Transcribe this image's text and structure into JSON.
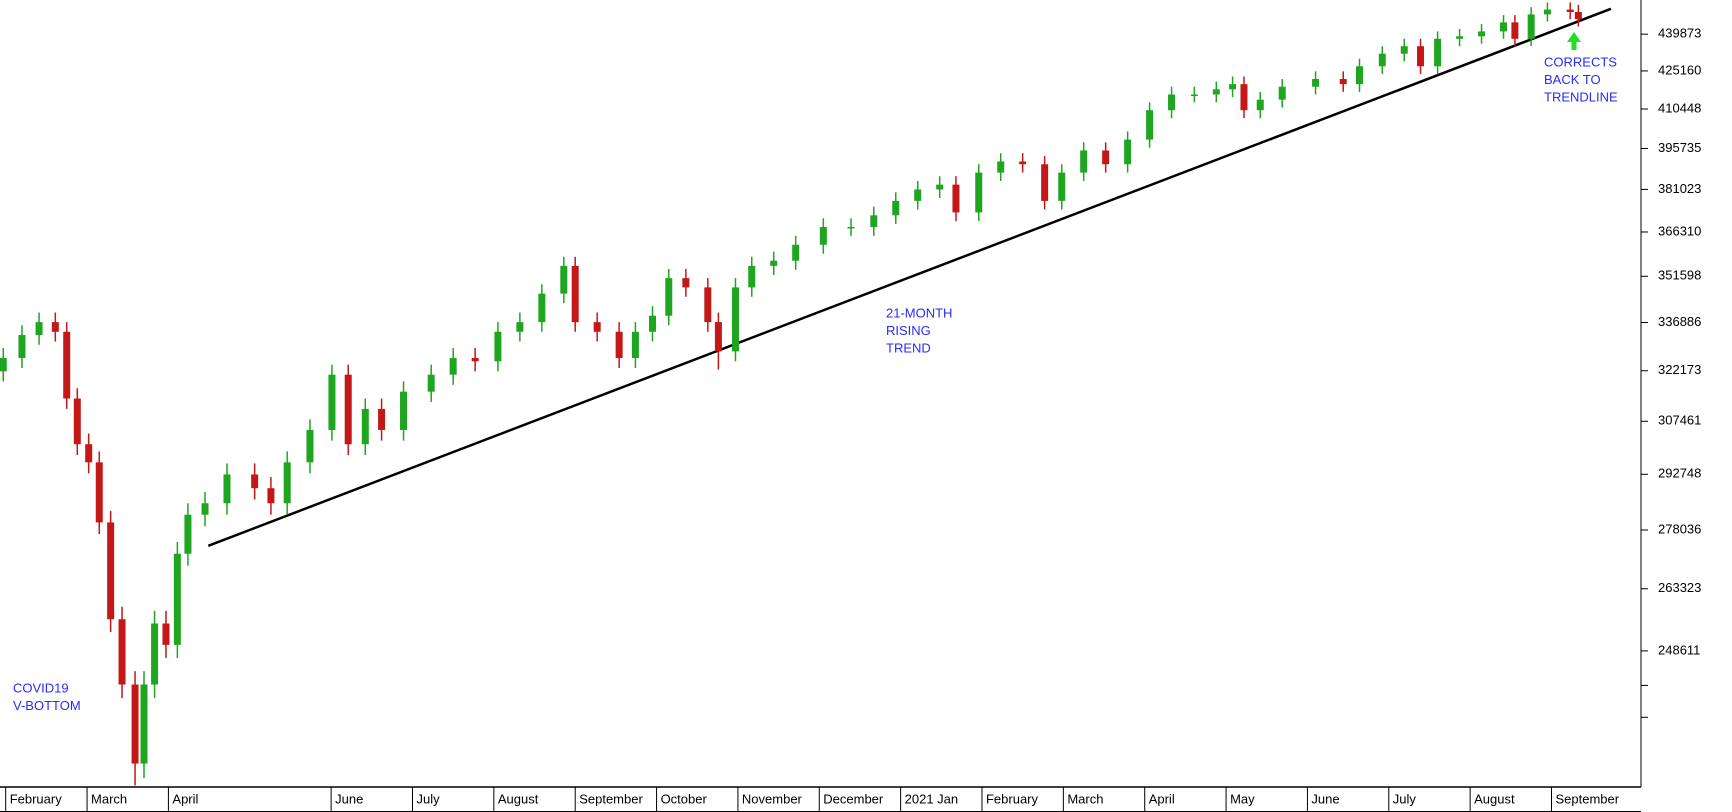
{
  "chart_data": {
    "type": "candlestick",
    "x": [
      -0.03,
      0.2,
      0.41,
      0.61,
      0.75,
      0.88,
      1.02,
      1.15,
      1.29,
      1.43,
      1.59,
      1.7,
      1.83,
      1.97,
      2.11,
      2.24,
      2.45,
      2.72,
      3.06,
      3.26,
      3.46,
      3.74,
      4.01,
      4.21,
      4.42,
      4.62,
      4.89,
      5.23,
      5.5,
      5.77,
      6.05,
      6.32,
      6.59,
      6.86,
      7.0,
      7.27,
      7.54,
      7.74,
      7.95,
      8.15,
      8.36,
      8.63,
      8.76,
      8.97,
      9.17,
      9.44,
      9.71,
      10.05,
      10.39,
      10.67,
      10.94,
      11.21,
      11.48,
      11.68,
      11.96,
      12.23,
      12.5,
      12.77,
      12.98,
      13.25,
      13.52,
      13.79,
      14.06,
      14.33,
      14.61,
      14.88,
      15.08,
      15.22,
      15.42,
      15.69,
      16.1,
      16.44,
      16.64,
      16.92,
      17.19,
      17.39,
      17.6,
      17.87,
      18.14,
      18.41,
      18.55,
      18.75,
      18.95,
      19.23,
      19.33
    ],
    "open": [
      322000,
      326000,
      333000,
      337000,
      334000,
      314000,
      301000,
      296000,
      280000,
      256000,
      241000,
      224000,
      241000,
      255000,
      250000,
      272000,
      282000,
      285000,
      292700,
      289000,
      285000,
      296000,
      305000,
      321000,
      301000,
      311000,
      305000,
      316000,
      321000,
      326000,
      325000,
      334000,
      337000,
      346000,
      355000,
      337000,
      334000,
      326000,
      334000,
      339000,
      351000,
      348000,
      337000,
      328000,
      348000,
      355000,
      356700,
      362000,
      368000,
      368000,
      372000,
      377000,
      381000,
      382700,
      373000,
      387000,
      391000,
      390000,
      377000,
      387000,
      395000,
      390000,
      399000,
      410000,
      416000,
      416000,
      418000,
      420000,
      410000,
      414000,
      419000,
      422000,
      420000,
      427000,
      432000,
      435000,
      427000,
      438000,
      439000,
      441000,
      444700,
      438000,
      448000,
      450000,
      449000
    ],
    "high": [
      329000,
      336000,
      340000,
      340000,
      337000,
      317000,
      304000,
      299000,
      283000,
      259000,
      244000,
      244000,
      258000,
      258000,
      275000,
      285000,
      288000,
      295700,
      295700,
      292000,
      299000,
      308000,
      324000,
      324000,
      314000,
      314000,
      319000,
      324000,
      329000,
      329000,
      337000,
      340000,
      349000,
      358000,
      358000,
      340000,
      337000,
      337000,
      342000,
      354000,
      354000,
      351000,
      340000,
      351000,
      358000,
      359700,
      365000,
      371000,
      371000,
      375000,
      380000,
      384000,
      385700,
      385700,
      390000,
      394000,
      394000,
      393000,
      390000,
      398000,
      398000,
      402000,
      413000,
      419000,
      419000,
      421000,
      423000,
      423000,
      417000,
      422000,
      425000,
      425000,
      430000,
      435000,
      438000,
      438000,
      441000,
      442000,
      444000,
      447700,
      447700,
      451000,
      453000,
      453000,
      452000
    ],
    "low": [
      319000,
      323000,
      330000,
      331000,
      311000,
      298000,
      293000,
      277000,
      253000,
      238000,
      219500,
      221000,
      238000,
      247000,
      247000,
      269000,
      279000,
      282000,
      286000,
      282000,
      282000,
      293000,
      302000,
      298000,
      298000,
      302000,
      302000,
      313000,
      318000,
      322000,
      322000,
      331000,
      334000,
      343000,
      334000,
      331000,
      323000,
      323000,
      331000,
      336000,
      345000,
      334000,
      322500,
      325000,
      345000,
      352000,
      353700,
      359000,
      365000,
      365000,
      369000,
      374000,
      378000,
      370000,
      370000,
      384000,
      387000,
      374000,
      374000,
      384000,
      387000,
      387000,
      396000,
      407000,
      413000,
      413000,
      415000,
      407000,
      407000,
      411000,
      416000,
      417000,
      417000,
      424000,
      429000,
      424000,
      424000,
      435000,
      436000,
      438000,
      435000,
      435000,
      445000,
      446000,
      443000
    ],
    "close": [
      326000,
      333000,
      337000,
      334000,
      314000,
      301000,
      296000,
      280000,
      256000,
      241000,
      224000,
      241000,
      255000,
      250000,
      272000,
      282000,
      285000,
      292700,
      289000,
      285000,
      296000,
      305000,
      321000,
      301000,
      311000,
      305000,
      316000,
      321000,
      326000,
      325000,
      334000,
      337000,
      346000,
      355000,
      337000,
      334000,
      326000,
      334000,
      339000,
      351000,
      348000,
      337000,
      328000,
      348000,
      355000,
      356700,
      362000,
      368000,
      368000,
      372000,
      377000,
      381000,
      382700,
      373000,
      387000,
      391000,
      390000,
      377000,
      387000,
      395000,
      390000,
      399000,
      410000,
      416000,
      416000,
      418000,
      420000,
      410000,
      414000,
      419000,
      422000,
      420000,
      427000,
      432000,
      435000,
      427000,
      438000,
      439000,
      441000,
      444700,
      438000,
      448000,
      450000,
      449000,
      446000
    ],
    "up_color": "#1fa51f",
    "down_color": "#c41818",
    "xlim": [
      -0.07,
      20.1
    ],
    "xticks": [
      {
        "value": 0,
        "label": "February"
      },
      {
        "value": 1,
        "label": "March"
      },
      {
        "value": 2,
        "label": "April"
      },
      {
        "value": 4,
        "label": "June"
      },
      {
        "value": 5,
        "label": "July"
      },
      {
        "value": 6,
        "label": "August"
      },
      {
        "value": 7,
        "label": "September"
      },
      {
        "value": 8,
        "label": "October"
      },
      {
        "value": 9,
        "label": "November"
      },
      {
        "value": 10,
        "label": "December"
      },
      {
        "value": 11,
        "label": "2021 Jan"
      },
      {
        "value": 12,
        "label": "February"
      },
      {
        "value": 13,
        "label": "March"
      },
      {
        "value": 14,
        "label": "April"
      },
      {
        "value": 15,
        "label": "May"
      },
      {
        "value": 16,
        "label": "June"
      },
      {
        "value": 17,
        "label": "July"
      },
      {
        "value": 18,
        "label": "August"
      },
      {
        "value": 19,
        "label": "September"
      }
    ],
    "ylim": [
      219200,
      454000
    ],
    "log_y": true,
    "yticks": [
      {
        "value": 233800,
        "label": null
      },
      {
        "value": 240800,
        "label": null
      },
      248611,
      263323,
      278036,
      292748,
      307461,
      322173,
      336886,
      351598,
      366310,
      381023,
      395735,
      410448,
      425160,
      439873
    ],
    "trendline": {
      "x": [
        2.49,
        19.73
      ],
      "y": [
        274000,
        450300
      ],
      "color": "#000000"
    },
    "annotation_color": "#2a2aff",
    "annotations": [
      {
        "lines": [
          "COVID19",
          "V-BOTTOM"
        ]
      },
      {
        "lines": [
          "21-MONTH",
          "RISING",
          "TREND"
        ]
      },
      {
        "lines": [
          "CORRECTS",
          "BACK TO",
          "TRENDLINE"
        ]
      }
    ]
  }
}
